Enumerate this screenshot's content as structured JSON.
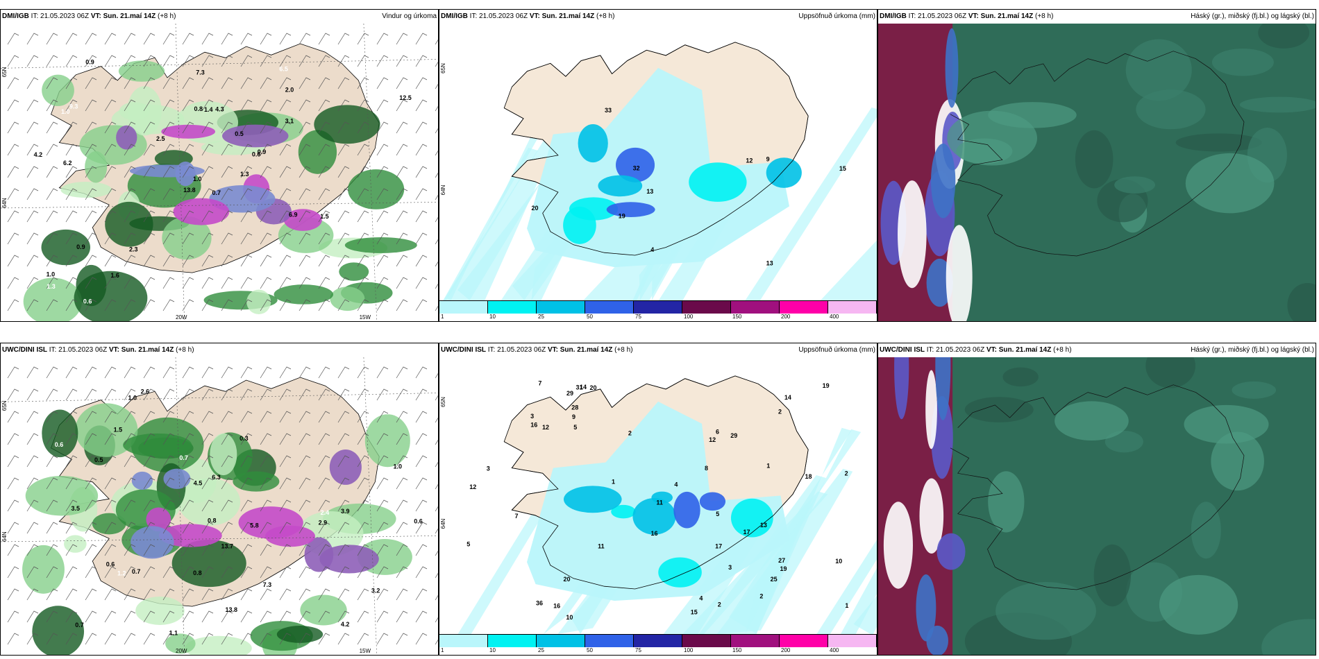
{
  "panels": [
    {
      "source": "DMI/IGB",
      "init": "IT: 21.05.2023 06Z",
      "vt_label": "VT:",
      "vt_value": "Sun. 21.maí 14Z",
      "lead": "(+8 h)",
      "field": "Vindur og úrkoma",
      "type": "wind",
      "axes": {
        "left": [
          "65N",
          "64N"
        ],
        "bottom": [
          "20W",
          "15W"
        ]
      },
      "labels": [
        "0.7",
        "1.0",
        "1.0",
        "1.0",
        "0.6",
        "2.3",
        "6.5",
        "4.3",
        "2.0",
        "1.3",
        "0.9",
        "3.5",
        "6.2",
        "12.5",
        "13.8",
        "3.1",
        "0.6",
        "0.8",
        "0.5",
        "0.9",
        "2.5",
        "1.3",
        "1.6",
        "1.4",
        "0.9",
        "1.5",
        "9.3",
        "7.3",
        "4.2",
        "6.9"
      ]
    },
    {
      "source": "DMI/IGB",
      "init": "IT: 21.05.2023 06Z",
      "vt_label": "VT:",
      "vt_value": "Sun. 21.maí 14Z",
      "lead": "(+8 h)",
      "field": "Uppsöfnuð úrkoma (mm)",
      "type": "precip",
      "axes": {
        "left": [
          "65N",
          "64N"
        ],
        "bottom": []
      },
      "labels": [
        "12",
        "13",
        "9",
        "13",
        "4",
        "33",
        "32",
        "20",
        "19",
        "15"
      ],
      "colorbar": {
        "colors": [
          "#b9f6fb",
          "#00f2f2",
          "#00c1e6",
          "#2f62e8",
          "#2325a5",
          "#6a0a4a",
          "#a0107e",
          "#ff00a8",
          "#f6b7f2"
        ],
        "ticks": [
          "1",
          "10",
          "25",
          "50",
          "75",
          "100",
          "150",
          "200",
          "400"
        ]
      }
    },
    {
      "source": "DMI/IGB",
      "init": "IT: 21.05.2023 06Z",
      "vt_label": "VT:",
      "vt_value": "Sun. 21.maí 14Z",
      "lead": "(+8 h)",
      "field": "Háský (gr.), miðský (fj.bl.) og lágský (bl.)",
      "type": "cloud"
    },
    {
      "source": "UWC/DINI ISL",
      "init": "IT: 21.05.2023 06Z",
      "vt_label": "VT:",
      "vt_value": "Sun. 21.maí 14Z",
      "lead": "(+8 h)",
      "field": "",
      "type": "wind",
      "axes": {
        "left": [
          "65N",
          "64N"
        ],
        "bottom": [
          "20W",
          "15W"
        ]
      },
      "labels": [
        "0.5",
        "0.6",
        "4.5",
        "1.0",
        "0.7",
        "0.3",
        "0.6",
        "5.8",
        "3.2",
        "2.9",
        "2.6",
        "2.4",
        "4.2",
        "3.9",
        "13.7",
        "13.8",
        "0.7",
        "0.8",
        "0.6",
        "0.8",
        "0.6",
        "1.2",
        "1.5",
        "1.1",
        "1.0",
        "0.7",
        "0.6",
        "7.3",
        "6.3",
        "3.5"
      ]
    },
    {
      "source": "UWC/DINI ISL",
      "init": "IT: 21.05.2023 06Z",
      "vt_label": "VT:",
      "vt_value": "Sun. 21.maí 14Z",
      "lead": "(+8 h)",
      "field": "Uppsöfnuð úrkoma (mm)",
      "type": "precip",
      "axes": {
        "left": [
          "65N",
          "64N"
        ],
        "bottom": []
      },
      "labels": [
        "2",
        "2",
        "1",
        "3",
        "16",
        "17",
        "19",
        "10",
        "8",
        "7",
        "11",
        "5",
        "12",
        "13",
        "7",
        "27",
        "14",
        "16",
        "25",
        "18",
        "36",
        "14",
        "16",
        "29",
        "17",
        "29",
        "20",
        "20",
        "31",
        "28",
        "11",
        "6",
        "3",
        "4",
        "2",
        "1",
        "2",
        "5",
        "5",
        "4",
        "2",
        "1",
        "9",
        "10",
        "15",
        "3",
        "19",
        "12",
        "12"
      ],
      "colorbar": {
        "colors": [
          "#b9f6fb",
          "#00f2f2",
          "#00c1e6",
          "#2f62e8",
          "#2325a5",
          "#6a0a4a",
          "#a0107e",
          "#ff00a8",
          "#f6b7f2"
        ],
        "ticks": [
          "1",
          "10",
          "25",
          "50",
          "75",
          "100",
          "150",
          "200",
          "400"
        ]
      }
    },
    {
      "source": "UWC/DINI ISL",
      "init": "IT: 21.05.2023 06Z",
      "vt_label": "VT:",
      "vt_value": "Sun. 21.maí 14Z",
      "lead": "(+8 h)",
      "field": "Háský (gr.), miðský (fj.bl.) og lágský (bl.)",
      "type": "cloud"
    }
  ]
}
